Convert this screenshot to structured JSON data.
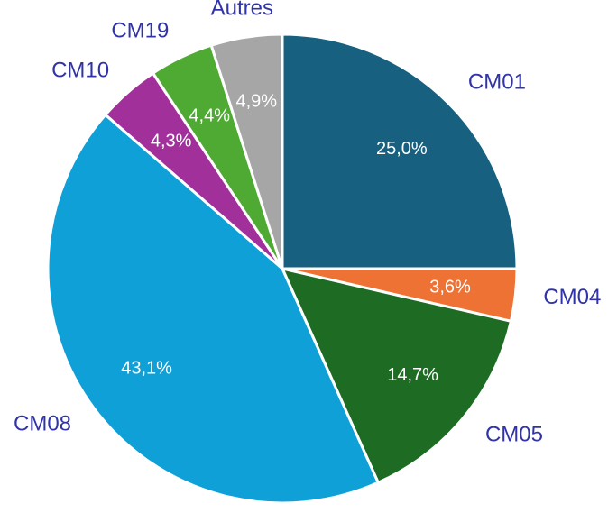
{
  "chart_data": {
    "type": "pie",
    "categories": [
      "CM01",
      "CM04",
      "CM05",
      "CM08",
      "CM10",
      "CM19",
      "Autres"
    ],
    "values": [
      25.0,
      3.6,
      14.7,
      43.1,
      4.3,
      4.4,
      4.9
    ],
    "value_labels": [
      "25,0%",
      "3,6%",
      "14,7%",
      "43,1%",
      "4,3%",
      "4,4%",
      "4,9%"
    ],
    "colors": [
      "#17607f",
      "#ed7234",
      "#1e6b24",
      "#10a0d8",
      "#a1309a",
      "#4faa34",
      "#a6a6a6"
    ]
  }
}
